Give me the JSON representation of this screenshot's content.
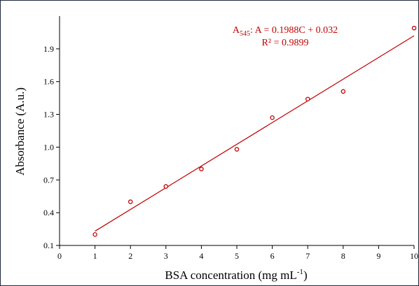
{
  "chart_data": {
    "type": "scatter",
    "title": "",
    "xlabel": "BSA concentration (mg mL",
    "xlabel_superscript": "-1",
    "xlabel_suffix": ")",
    "ylabel": "Absorbance (A.u.)",
    "xlim": [
      0,
      10
    ],
    "ylim": [
      0.1,
      2.2
    ],
    "xticks": [
      0,
      1,
      2,
      3,
      4,
      5,
      6,
      7,
      8,
      9,
      10
    ],
    "yticks": [
      0.1,
      0.4,
      0.7,
      1.0,
      1.3,
      1.6,
      1.9
    ],
    "ytick_labels": [
      "0.1",
      "0.4",
      "0.7",
      "1.0",
      "1.3",
      "1.6",
      "1.9"
    ],
    "grid": false,
    "series": [
      {
        "x": [
          1,
          2,
          3,
          4,
          5,
          6,
          7,
          8,
          10
        ],
        "y": [
          0.2,
          0.5,
          0.64,
          0.8,
          0.98,
          1.27,
          1.44,
          1.51,
          2.09
        ],
        "marker": "open-circle",
        "color": "#c00000"
      }
    ],
    "trendline": {
      "slope": 0.1988,
      "intercept": 0.032,
      "x_range": [
        1,
        10
      ],
      "color": "#c00000"
    },
    "annotation": {
      "lead": "A",
      "lead_subscript": "545",
      "equation": ": A = 0.1988C + 0.032",
      "r2": "R² = 0.9899",
      "color": "#c00000"
    }
  }
}
